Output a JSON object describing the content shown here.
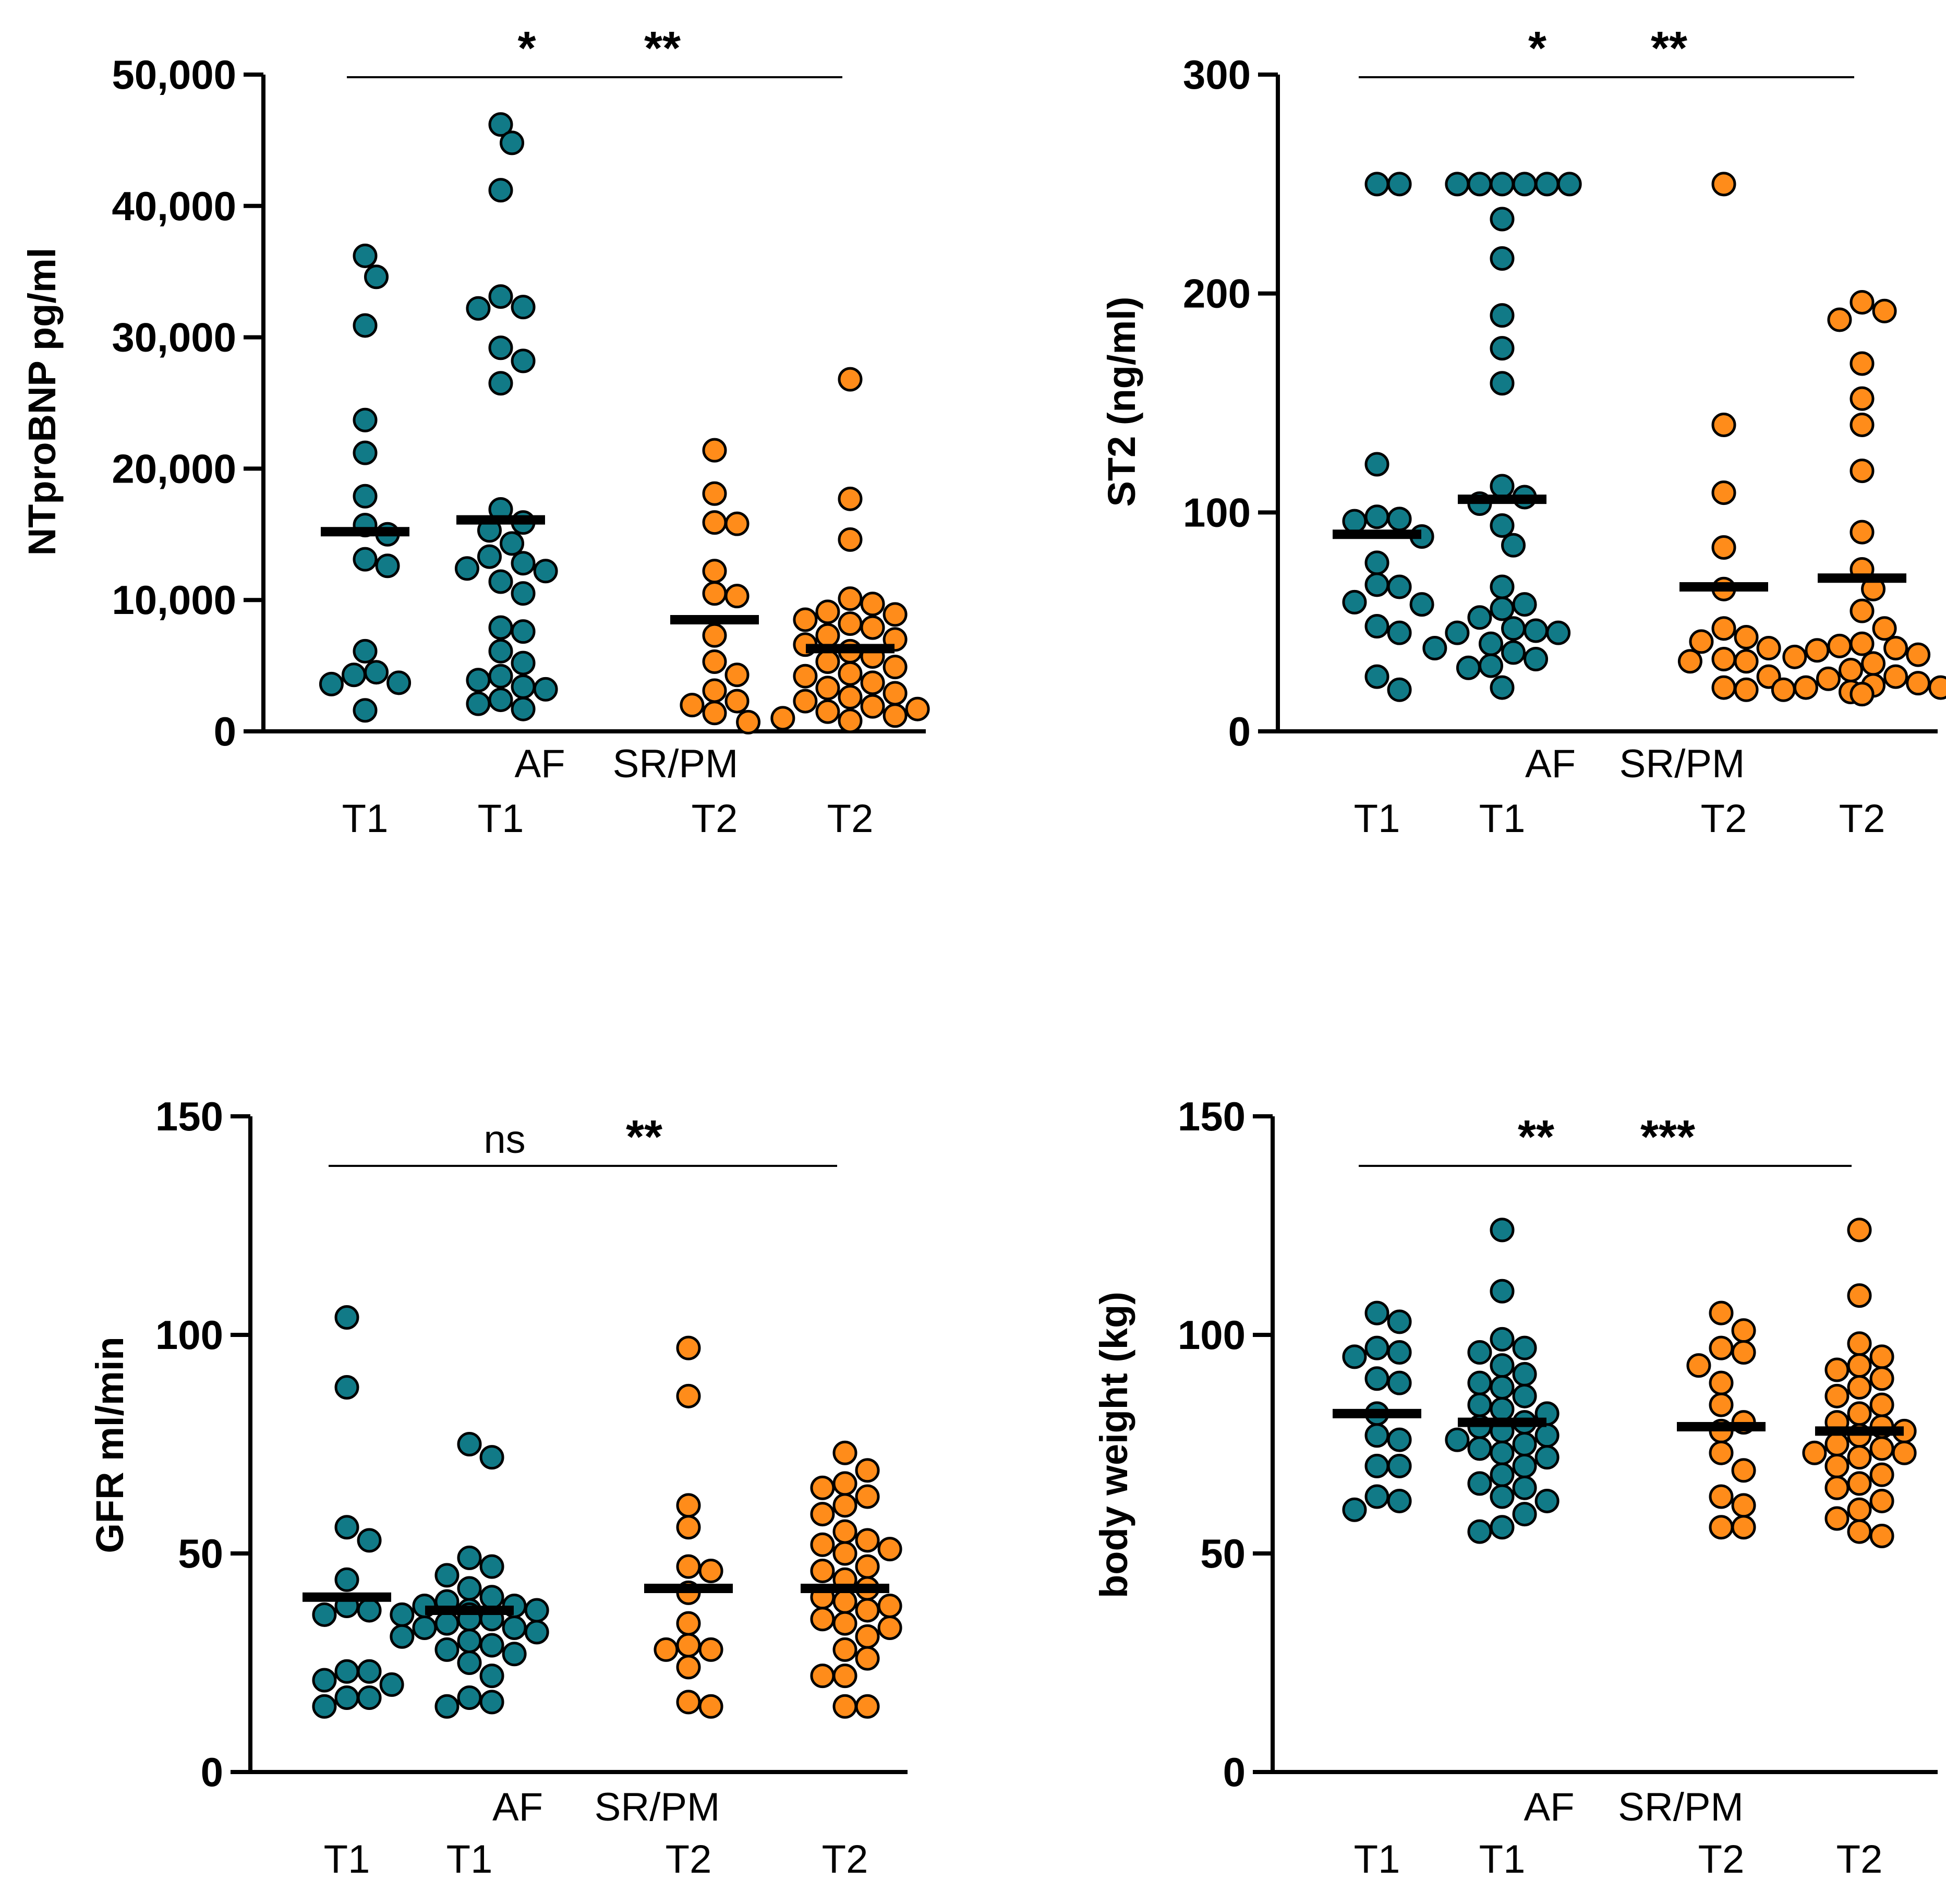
{
  "colors": {
    "t1": "#117a87",
    "t2": "#ff8c1a",
    "outline": "#000000"
  },
  "chart_data": [
    {
      "type": "scatter",
      "ylabel": "NTproBNP pg/ml",
      "ylim": [
        0,
        50000
      ],
      "yticks": [
        0,
        10000,
        20000,
        30000,
        40000,
        50000
      ],
      "ytick_labels": [
        "0",
        "10,000",
        "20,000",
        "30,000",
        "40,000",
        "50,000"
      ],
      "groups": [
        {
          "label": "AF",
          "times": [
            "T1",
            "T2"
          ],
          "series": [
            {
              "name": "T1",
              "mean": 15200,
              "values": [
                36200,
                34600,
                30900,
                23700,
                21200,
                17900,
                15700,
                15000,
                13100,
                12600,
                6100,
                4500,
                4300,
                3700,
                3600,
                1600
              ]
            },
            {
              "name": "T2",
              "mean": 8500,
              "values": [
                21400,
                18100,
                15900,
                15800,
                12200,
                10500,
                10300,
                7300,
                5300,
                4300,
                3100,
                2300,
                2000,
                1400,
                700
              ]
            }
          ],
          "significance": "*"
        },
        {
          "label": "SR/PM",
          "times": [
            "T1",
            "T2"
          ],
          "series": [
            {
              "name": "T1",
              "mean": 16100,
              "values": [
                46200,
                44800,
                41200,
                33100,
                32300,
                32200,
                29200,
                28200,
                26500,
                16900,
                15900,
                15300,
                14300,
                13300,
                12800,
                12400,
                12200,
                11400,
                10500,
                7900,
                7600,
                6100,
                5200,
                4200,
                3900,
                3400,
                3200,
                2400,
                2100,
                1700
              ]
            },
            {
              "name": "T2",
              "mean": 6300,
              "values": [
                26800,
                17700,
                14600,
                10100,
                9700,
                9100,
                8900,
                8500,
                8200,
                7900,
                7300,
                7000,
                6600,
                6100,
                5700,
                5300,
                4900,
                4400,
                4200,
                3700,
                3300,
                2900,
                2600,
                2300,
                1900,
                1700,
                1500,
                1200,
                1000,
                800
              ]
            }
          ],
          "significance": "**"
        }
      ]
    },
    {
      "type": "scatter",
      "ylabel": "ST2 (ng/ml)",
      "ylim": [
        0,
        300
      ],
      "yticks": [
        0,
        100,
        200,
        300
      ],
      "ytick_labels": [
        "0",
        "100",
        "200",
        "300"
      ],
      "groups": [
        {
          "label": "AF",
          "times": [
            "T1",
            "T2"
          ],
          "series": [
            {
              "name": "T1",
              "mean": 90,
              "values": [
                250,
                250,
                122,
                98,
                97,
                96,
                89,
                77,
                67,
                66,
                59,
                58,
                48,
                45,
                25,
                19
              ]
            },
            {
              "name": "T2",
              "mean": 66,
              "values": [
                250,
                140,
                109,
                84,
                65,
                47,
                43,
                41,
                38,
                33,
                32,
                32,
                25,
                20,
                19
              ]
            }
          ],
          "significance": "*"
        },
        {
          "label": "SR/PM",
          "times": [
            "T1",
            "T2"
          ],
          "series": [
            {
              "name": "T1",
              "mean": 106,
              "values": [
                250,
                250,
                250,
                250,
                250,
                250,
                234,
                216,
                190,
                175,
                159,
                112,
                107,
                104,
                94,
                85,
                66,
                58,
                56,
                52,
                47,
                46,
                45,
                45,
                40,
                38,
                36,
                33,
                30,
                29,
                20
              ]
            },
            {
              "name": "T2",
              "mean": 70,
              "values": [
                196,
                192,
                188,
                168,
                152,
                140,
                119,
                91,
                74,
                65,
                55,
                47,
                40,
                39,
                38,
                37,
                35,
                34,
                31,
                28,
                25,
                24,
                22,
                21,
                20,
                20,
                19,
                18,
                17,
                17
              ]
            }
          ],
          "significance": "**"
        }
      ]
    },
    {
      "type": "scatter",
      "ylabel": "GFR ml/min",
      "ylim": [
        0,
        150
      ],
      "yticks": [
        0,
        50,
        100,
        150
      ],
      "ytick_labels": [
        "0",
        "50",
        "100",
        "150"
      ],
      "groups": [
        {
          "label": "AF",
          "times": [
            "T1",
            "T2"
          ],
          "series": [
            {
              "name": "T1",
              "mean": 40,
              "values": [
                104,
                88,
                56,
                53,
                44,
                38,
                37,
                36,
                23,
                23,
                21,
                20,
                17,
                17,
                15
              ]
            },
            {
              "name": "T2",
              "mean": 42,
              "values": [
                97,
                86,
                61,
                56,
                47,
                46,
                41,
                34,
                29,
                28,
                28,
                24,
                16,
                15
              ]
            }
          ],
          "significance": "ns"
        },
        {
          "label": "SR/PM",
          "times": [
            "T1",
            "T2"
          ],
          "series": [
            {
              "name": "T1",
              "mean": 37,
              "values": [
                75,
                72,
                49,
                47,
                45,
                42,
                40,
                39,
                38,
                38,
                37,
                37,
                36,
                36,
                35,
                35,
                34,
                33,
                33,
                32,
                31,
                30,
                29,
                28,
                27,
                25,
                22,
                17,
                16,
                15
              ]
            },
            {
              "name": "T2",
              "mean": 42,
              "values": [
                73,
                69,
                66,
                65,
                63,
                61,
                59,
                55,
                53,
                52,
                51,
                50,
                47,
                46,
                44,
                42,
                40,
                39,
                38,
                37,
                35,
                34,
                33,
                31,
                28,
                26,
                22,
                22,
                15,
                15
              ]
            }
          ],
          "significance": "**"
        }
      ]
    },
    {
      "type": "scatter",
      "ylabel": "body weight (kg)",
      "ylim": [
        0,
        150
      ],
      "yticks": [
        0,
        50,
        100,
        150
      ],
      "ytick_labels": [
        "0",
        "50",
        "100",
        "150"
      ],
      "groups": [
        {
          "label": "AF",
          "times": [
            "T1",
            "T2"
          ],
          "series": [
            {
              "name": "T1",
              "mean": 82,
              "values": [
                105,
                103,
                97,
                96,
                95,
                90,
                89,
                82,
                77,
                76,
                70,
                70,
                63,
                62,
                60
              ]
            },
            {
              "name": "T2",
              "mean": 79,
              "values": [
                105,
                101,
                97,
                96,
                93,
                89,
                84,
                80,
                78,
                73,
                69,
                63,
                61,
                56,
                56
              ]
            }
          ],
          "significance": "**"
        },
        {
          "label": "SR/PM",
          "times": [
            "T1",
            "T2"
          ],
          "series": [
            {
              "name": "T1",
              "mean": 80,
              "values": [
                124,
                110,
                99,
                97,
                96,
                93,
                91,
                89,
                88,
                86,
                84,
                83,
                82,
                80,
                79,
                78,
                77,
                76,
                75,
                74,
                73,
                72,
                70,
                68,
                66,
                65,
                63,
                62,
                59,
                56,
                55
              ]
            },
            {
              "name": "T2",
              "mean": 78,
              "values": [
                124,
                109,
                98,
                95,
                93,
                92,
                90,
                88,
                86,
                84,
                82,
                80,
                79,
                78,
                77,
                75,
                74,
                73,
                73,
                72,
                70,
                68,
                66,
                65,
                62,
                60,
                58,
                55,
                54
              ]
            }
          ],
          "significance": "***"
        }
      ]
    }
  ]
}
